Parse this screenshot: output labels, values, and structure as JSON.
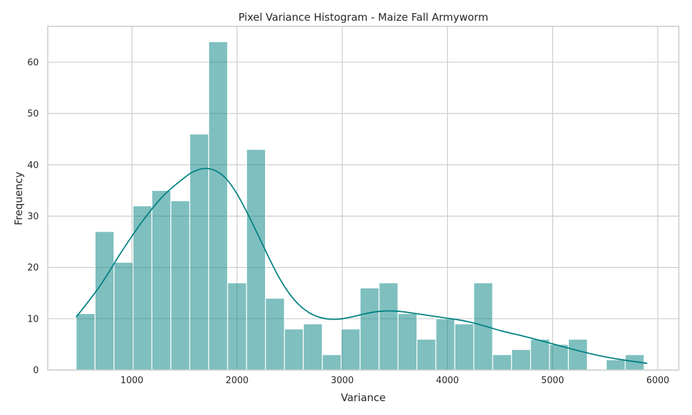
{
  "chart_data": {
    "type": "bar",
    "title": "Pixel Variance Histogram - Maize Fall Armyworm",
    "xlabel": "Variance",
    "ylabel": "Frequency",
    "xlim": [
      200,
      6200
    ],
    "ylim": [
      0,
      67
    ],
    "xticks": [
      1000,
      2000,
      3000,
      4000,
      5000,
      6000
    ],
    "yticks": [
      0,
      10,
      20,
      30,
      40,
      50,
      60
    ],
    "grid": true,
    "bar_color": "#008080",
    "bar_opacity": 0.5,
    "line_color": "#008080",
    "bins": [
      {
        "x0": 470,
        "x1": 650,
        "count": 11
      },
      {
        "x0": 650,
        "x1": 830,
        "count": 27
      },
      {
        "x0": 830,
        "x1": 1010,
        "count": 21
      },
      {
        "x0": 1010,
        "x1": 1190,
        "count": 32
      },
      {
        "x0": 1190,
        "x1": 1370,
        "count": 35
      },
      {
        "x0": 1370,
        "x1": 1550,
        "count": 33
      },
      {
        "x0": 1550,
        "x1": 1730,
        "count": 46
      },
      {
        "x0": 1730,
        "x1": 1910,
        "count": 64
      },
      {
        "x0": 1910,
        "x1": 2090,
        "count": 17
      },
      {
        "x0": 2090,
        "x1": 2270,
        "count": 43
      },
      {
        "x0": 2270,
        "x1": 2450,
        "count": 14
      },
      {
        "x0": 2450,
        "x1": 2630,
        "count": 8
      },
      {
        "x0": 2630,
        "x1": 2810,
        "count": 9
      },
      {
        "x0": 2810,
        "x1": 2990,
        "count": 3
      },
      {
        "x0": 2990,
        "x1": 3170,
        "count": 8
      },
      {
        "x0": 3170,
        "x1": 3350,
        "count": 16
      },
      {
        "x0": 3350,
        "x1": 3530,
        "count": 17
      },
      {
        "x0": 3530,
        "x1": 3710,
        "count": 11
      },
      {
        "x0": 3710,
        "x1": 3890,
        "count": 6
      },
      {
        "x0": 3890,
        "x1": 4070,
        "count": 10
      },
      {
        "x0": 4070,
        "x1": 4250,
        "count": 9
      },
      {
        "x0": 4250,
        "x1": 4430,
        "count": 17
      },
      {
        "x0": 4430,
        "x1": 4610,
        "count": 3
      },
      {
        "x0": 4610,
        "x1": 4790,
        "count": 4
      },
      {
        "x0": 4790,
        "x1": 4970,
        "count": 6
      },
      {
        "x0": 4970,
        "x1": 5150,
        "count": 5
      },
      {
        "x0": 5150,
        "x1": 5330,
        "count": 6
      },
      {
        "x0": 5330,
        "x1": 5510,
        "count": 0
      },
      {
        "x0": 5510,
        "x1": 5690,
        "count": 2
      },
      {
        "x0": 5690,
        "x1": 5870,
        "count": 3
      }
    ],
    "kde": {
      "x": [
        470,
        700,
        900,
        1100,
        1300,
        1500,
        1600,
        1700,
        1800,
        1900,
        2000,
        2100,
        2200,
        2300,
        2400,
        2500,
        2600,
        2700,
        2800,
        2900,
        3000,
        3100,
        3200,
        3300,
        3400,
        3500,
        3600,
        3700,
        3800,
        3900,
        4000,
        4100,
        4200,
        4300,
        4400,
        4500,
        4600,
        4800,
        5000,
        5200,
        5400,
        5600,
        5900
      ],
      "y": [
        10.3,
        16.5,
        23.0,
        29.0,
        34.0,
        37.5,
        38.8,
        39.3,
        38.8,
        37.2,
        34.3,
        30.5,
        26.3,
        22.0,
        18.0,
        14.8,
        12.5,
        11.0,
        10.2,
        9.9,
        10.0,
        10.4,
        10.9,
        11.3,
        11.5,
        11.5,
        11.3,
        11.0,
        10.7,
        10.4,
        10.1,
        9.8,
        9.4,
        8.9,
        8.3,
        7.7,
        7.2,
        6.2,
        5.1,
        4.0,
        3.0,
        2.2,
        1.3
      ]
    }
  }
}
